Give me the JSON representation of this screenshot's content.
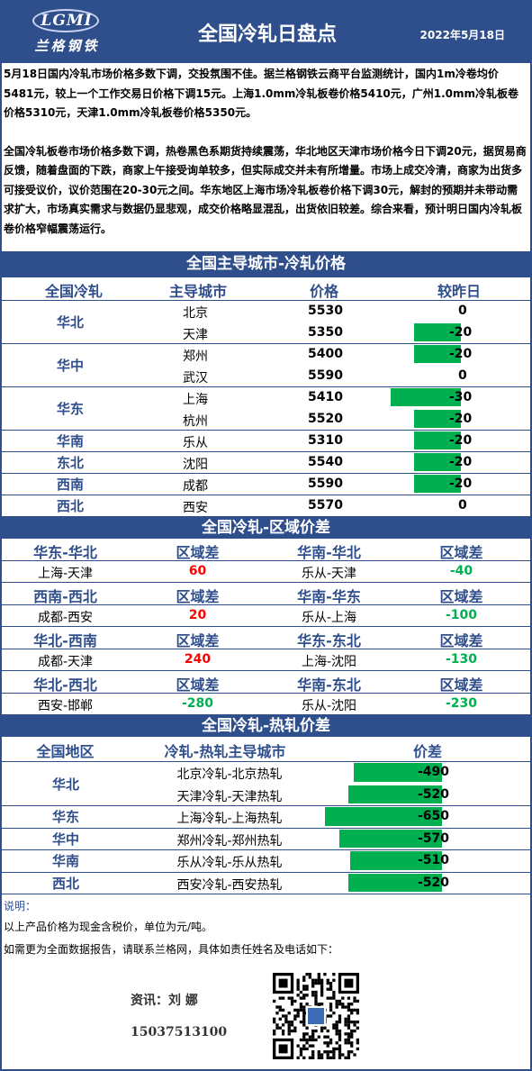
{
  "header": {
    "logo_text": "LGMI",
    "logo_cn": "兰格钢铁",
    "title": "全国冷轧日盘点",
    "date": "2022年5月18日"
  },
  "intro": {
    "p1": "5月18日国内冷轧市场价格多数下调，交投氛围不佳。据兰格钢铁云商平台监测统计，国内1m冷卷均价5481元，较上一个工作交易日价格下调15元。上海1.0mm冷轧板卷价格5410元，广州1.0mm冷轧板卷价格5310元，天津1.0mm冷轧板卷价格5350元。",
    "p2": "全国冷轧板卷市场价格多数下调，热卷黑色系期货持续震荡，华北地区天津市场价格今日下调20元，据贸易商反馈，随着盘面的下跌，商家上午接受询单较多，但实际成交并未有所增量。市场上成交冷清，商家为出货多可接受议价，议价范围在20-30元之间。华东地区上海市场冷轧板卷价格下调30元，解封的预期并未带动需求扩大，市场真实需求与数据仍显悲观，成交价格略显混乱，出货依旧较差。综合来看，预计明日国内冷轧板卷价格窄幅震荡运行。"
  },
  "price_section": {
    "title": "全国主导城市-冷轧价格",
    "headers": [
      "全国冷轧",
      "主导城市",
      "价格",
      "较昨日"
    ],
    "regions": [
      "华北",
      "华中",
      "华东",
      "华南",
      "东北",
      "西南",
      "西北"
    ],
    "rows": [
      {
        "city": "北京",
        "price": "5530",
        "change": "0",
        "change_value": 0
      },
      {
        "city": "天津",
        "price": "5350",
        "change": "-20",
        "change_value": -20
      },
      {
        "city": "郑州",
        "price": "5400",
        "change": "-20",
        "change_value": -20
      },
      {
        "city": "武汉",
        "price": "5590",
        "change": "0",
        "change_value": 0
      },
      {
        "city": "上海",
        "price": "5410",
        "change": "-30",
        "change_value": -30
      },
      {
        "city": "杭州",
        "price": "5520",
        "change": "-20",
        "change_value": -20
      },
      {
        "city": "乐从",
        "price": "5310",
        "change": "-20",
        "change_value": -20
      },
      {
        "city": "沈阳",
        "price": "5540",
        "change": "-20",
        "change_value": -20
      },
      {
        "city": "成都",
        "price": "5590",
        "change": "-20",
        "change_value": -20
      },
      {
        "city": "西安",
        "price": "5570",
        "change": "0",
        "change_value": 0
      }
    ]
  },
  "spread_section": {
    "title": "全国冷轧-区域价差",
    "spread_label": "区域差",
    "blocks": [
      {
        "left_head": "华东-华北",
        "left_pair": "上海-天津",
        "left_val": "60",
        "right_head": "华南-华北",
        "right_pair": "乐从-天津",
        "right_val": "-40"
      },
      {
        "left_head": "西南-西北",
        "left_pair": "成都-西安",
        "left_val": "20",
        "right_head": "华南-华东",
        "right_pair": "乐从-上海",
        "right_val": "-100"
      },
      {
        "left_head": "华北-西南",
        "left_pair": "成都-天津",
        "left_val": "240",
        "right_head": "华东-东北",
        "right_pair": "上海-沈阳",
        "right_val": "-130"
      },
      {
        "left_head": "华北-西北",
        "left_pair": "西安-邯郸",
        "left_val": "-280",
        "right_head": "华南-东北",
        "right_pair": "乐从-沈阳",
        "right_val": "-230"
      }
    ]
  },
  "hot_section": {
    "title": "全国冷轧-热轧价差",
    "headers": [
      "全国地区",
      "冷轧-热轧主导城市",
      "价差"
    ],
    "regions": [
      "华北",
      "华东",
      "华中",
      "华南",
      "西北"
    ],
    "rows": [
      {
        "pair": "北京冷轧-北京热轧",
        "value": "-490",
        "num": -490
      },
      {
        "pair": "天津冷轧-天津热轧",
        "value": "-520",
        "num": -520
      },
      {
        "pair": "上海冷轧-上海热轧",
        "value": "-650",
        "num": -650
      },
      {
        "pair": "郑州冷轧-郑州热轧",
        "value": "-570",
        "num": -570
      },
      {
        "pair": "乐从冷轧-乐从热轧",
        "value": "-510",
        "num": -510
      },
      {
        "pair": "西安冷轧-西安热轧",
        "value": "-520",
        "num": -520
      }
    ]
  },
  "notes": {
    "title": "说明：",
    "line1": "以上产品价格为现金含税价，单位为元/吨。",
    "line2": "如需更为全面数据报告，请联系兰格网，具体如责任姓名及电话如下：",
    "contact_name": "资讯：刘 娜",
    "contact_phone": "15037513100"
  }
}
